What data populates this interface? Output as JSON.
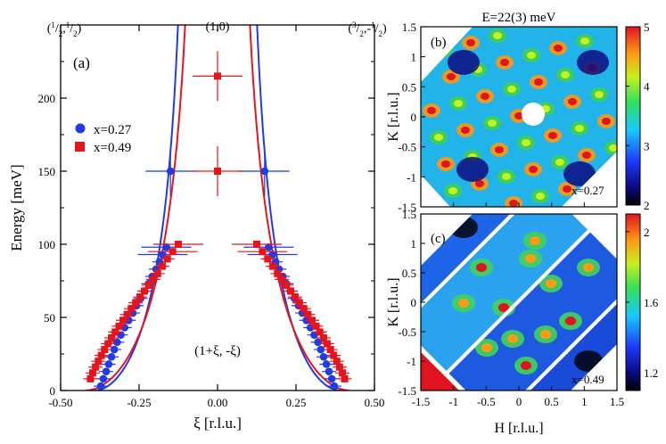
{
  "chart_data": [
    {
      "panel": "(a)",
      "type": "scatter",
      "xlabel": "ξ [r.l.u.]",
      "ylabel": "Energy [meV]",
      "xlim": [
        -0.5,
        0.5
      ],
      "ylim": [
        0,
        250
      ],
      "xticks": [
        "-0.50",
        "-0.25",
        "0.00",
        "0.25",
        "0.50"
      ],
      "yticks": [
        "0",
        "50",
        "100",
        "150",
        "200"
      ],
      "top_labels": {
        "left": "(1/2,1/2)",
        "center": "(1,0)",
        "right": "(3/2,-1/2)"
      },
      "annotation": "(1+ξ, -ξ)",
      "legend_placement": "upper-left",
      "series": [
        {
          "name": "x=0.27",
          "color": "#1f3be6",
          "marker": "circle",
          "points": [
            {
              "x": -0.372,
              "y": 3
            },
            {
              "x": -0.364,
              "y": 8
            },
            {
              "x": -0.355,
              "y": 13
            },
            {
              "x": -0.347,
              "y": 18
            },
            {
              "x": -0.338,
              "y": 23
            },
            {
              "x": -0.329,
              "y": 28
            },
            {
              "x": -0.32,
              "y": 33
            },
            {
              "x": -0.308,
              "y": 38
            },
            {
              "x": -0.296,
              "y": 43
            },
            {
              "x": -0.283,
              "y": 48
            },
            {
              "x": -0.27,
              "y": 53
            },
            {
              "x": -0.258,
              "y": 58
            },
            {
              "x": -0.245,
              "y": 63
            },
            {
              "x": -0.232,
              "y": 68
            },
            {
              "x": -0.22,
              "y": 73
            },
            {
              "x": -0.208,
              "y": 78
            },
            {
              "x": -0.196,
              "y": 83
            },
            {
              "x": -0.185,
              "y": 88
            },
            {
              "x": -0.175,
              "y": 93
            },
            {
              "x": -0.163,
              "y": 98
            },
            {
              "x": -0.15,
              "y": 150
            },
            {
              "x": 0.15,
              "y": 150
            },
            {
              "x": 0.163,
              "y": 98
            },
            {
              "x": 0.175,
              "y": 93
            },
            {
              "x": 0.185,
              "y": 88
            },
            {
              "x": 0.196,
              "y": 83
            },
            {
              "x": 0.208,
              "y": 78
            },
            {
              "x": 0.22,
              "y": 73
            },
            {
              "x": 0.232,
              "y": 68
            },
            {
              "x": 0.245,
              "y": 63
            },
            {
              "x": 0.258,
              "y": 58
            },
            {
              "x": 0.27,
              "y": 53
            },
            {
              "x": 0.283,
              "y": 48
            },
            {
              "x": 0.296,
              "y": 43
            },
            {
              "x": 0.308,
              "y": 38
            },
            {
              "x": 0.32,
              "y": 33
            },
            {
              "x": 0.329,
              "y": 28
            },
            {
              "x": 0.338,
              "y": 23
            },
            {
              "x": 0.347,
              "y": 18
            },
            {
              "x": 0.355,
              "y": 13
            },
            {
              "x": 0.364,
              "y": 8
            },
            {
              "x": 0.372,
              "y": 3
            }
          ]
        },
        {
          "name": "x=0.49",
          "color": "#e8141c",
          "marker": "square",
          "points": [
            {
              "x": -0.405,
              "y": 8
            },
            {
              "x": -0.398,
              "y": 12
            },
            {
              "x": -0.389,
              "y": 16
            },
            {
              "x": -0.38,
              "y": 20
            },
            {
              "x": -0.37,
              "y": 24
            },
            {
              "x": -0.36,
              "y": 28
            },
            {
              "x": -0.349,
              "y": 32
            },
            {
              "x": -0.338,
              "y": 36
            },
            {
              "x": -0.326,
              "y": 40
            },
            {
              "x": -0.314,
              "y": 44
            },
            {
              "x": -0.301,
              "y": 48
            },
            {
              "x": -0.288,
              "y": 52
            },
            {
              "x": -0.275,
              "y": 56
            },
            {
              "x": -0.261,
              "y": 60
            },
            {
              "x": -0.247,
              "y": 64
            },
            {
              "x": -0.233,
              "y": 68
            },
            {
              "x": -0.219,
              "y": 72
            },
            {
              "x": -0.205,
              "y": 76
            },
            {
              "x": -0.191,
              "y": 80
            },
            {
              "x": -0.176,
              "y": 85
            },
            {
              "x": -0.16,
              "y": 90
            },
            {
              "x": -0.143,
              "y": 95
            },
            {
              "x": -0.125,
              "y": 100
            },
            {
              "x": 0.0,
              "y": 215
            },
            {
              "x": 0.0,
              "y": 150
            },
            {
              "x": 0.125,
              "y": 100
            },
            {
              "x": 0.143,
              "y": 95
            },
            {
              "x": 0.16,
              "y": 90
            },
            {
              "x": 0.176,
              "y": 85
            },
            {
              "x": 0.191,
              "y": 80
            },
            {
              "x": 0.205,
              "y": 76
            },
            {
              "x": 0.219,
              "y": 72
            },
            {
              "x": 0.233,
              "y": 68
            },
            {
              "x": 0.247,
              "y": 64
            },
            {
              "x": 0.261,
              "y": 60
            },
            {
              "x": 0.275,
              "y": 56
            },
            {
              "x": 0.288,
              "y": 52
            },
            {
              "x": 0.301,
              "y": 48
            },
            {
              "x": 0.314,
              "y": 44
            },
            {
              "x": 0.326,
              "y": 40
            },
            {
              "x": 0.338,
              "y": 36
            },
            {
              "x": 0.349,
              "y": 32
            },
            {
              "x": 0.36,
              "y": 28
            },
            {
              "x": 0.37,
              "y": 24
            },
            {
              "x": 0.38,
              "y": 20
            },
            {
              "x": 0.389,
              "y": 16
            },
            {
              "x": 0.398,
              "y": 12
            },
            {
              "x": 0.405,
              "y": 8
            }
          ]
        }
      ],
      "fit_curves": [
        {
          "color": "#1f3be6",
          "x_at_zero_energy": 0.39,
          "asymptote_x": 0.09
        },
        {
          "color": "#e8141c",
          "x_at_zero_energy": 0.42,
          "asymptote_x": 0.06
        }
      ]
    },
    {
      "panel": "(b)",
      "type": "heatmap",
      "title": "E=22(3) meV",
      "xlabel": "",
      "ylabel": "K [r.l.u.]",
      "xlim": [
        -1.5,
        1.5
      ],
      "ylim": [
        -1.5,
        1.5
      ],
      "yticks": [
        "1.5",
        "1",
        "0.5",
        "0",
        "-0.5",
        "-1",
        "-1.5"
      ],
      "inset_label": "x=0.27",
      "colorbar_ticks": [
        "5",
        "4",
        "3",
        "2"
      ],
      "colorbar_range": [
        2,
        5
      ]
    },
    {
      "panel": "(c)",
      "type": "heatmap",
      "xlabel": "H [r.l.u.]",
      "ylabel": "K [r.l.u.]",
      "xlim": [
        -1.5,
        1.5
      ],
      "ylim": [
        -1.5,
        1.5
      ],
      "xticks": [
        "-1.5",
        "-1",
        "-0.5",
        "0",
        "0.5",
        "1",
        "1.5"
      ],
      "yticks": [
        "1.5",
        "1",
        "0.5",
        "0",
        "-0.5",
        "-1",
        "-1.5"
      ],
      "inset_label": "x=0.49",
      "colorbar_ticks": [
        "2",
        "1.6",
        "1.2"
      ],
      "colorbar_range": [
        1.1,
        2.1
      ]
    }
  ]
}
